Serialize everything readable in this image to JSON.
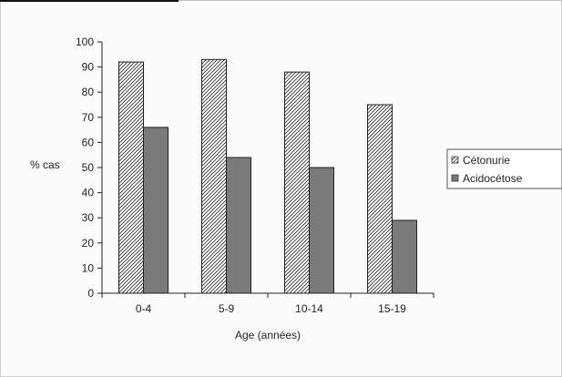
{
  "chart_data": {
    "type": "bar",
    "categories": [
      "0-4",
      "5-9",
      "10-14",
      "15-19"
    ],
    "series": [
      {
        "name": "Cétonurie",
        "values": [
          92,
          93,
          88,
          75
        ],
        "color": "#ffffff",
        "pattern": "diagonal-hatch"
      },
      {
        "name": "Acidocétose",
        "values": [
          66,
          54,
          50,
          29
        ],
        "color": "#7a7a7a",
        "pattern": "solid"
      }
    ],
    "xlabel": "Age (années)",
    "ylabel": "% cas",
    "ylim": [
      0,
      100
    ],
    "yticks": [
      0,
      10,
      20,
      30,
      40,
      50,
      60,
      70,
      80,
      90,
      100
    ],
    "grid": false,
    "legend_position": "right"
  }
}
